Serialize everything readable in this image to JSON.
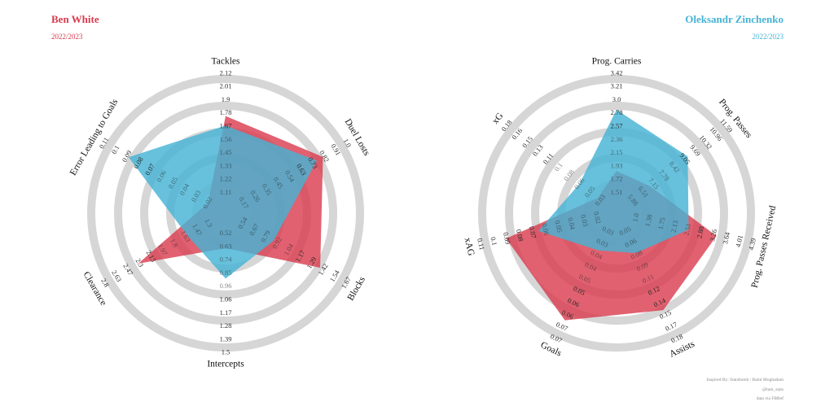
{
  "players": [
    {
      "name": "Ben White",
      "season": "2022/2023",
      "color": "#d93a4c"
    },
    {
      "name": "Oleksandr Zinchenko",
      "season": "2022/2023",
      "color": "#45b3d4"
    }
  ],
  "credits": [
    "Inspired By: Statsbomb / Rami Moghadam",
    "@tam_stats",
    "data via FBRef"
  ],
  "chart_data": [
    {
      "type": "radar",
      "axes": [
        {
          "label": "Tackles",
          "ticks": [
            "1.11",
            "1.22",
            "1.33",
            "1.45",
            "1.56",
            "1.67",
            "1.78",
            "1.9",
            "2.01",
            "2.12"
          ],
          "range": [
            1.11,
            2.12
          ]
        },
        {
          "label": "Duel Losts",
          "ticks": [
            "0.17",
            "0.26",
            "0.35",
            "0.45",
            "0.54",
            "0.63",
            "0.73",
            "0.82",
            "0.91",
            "1.0"
          ],
          "range": [
            0.17,
            1.0
          ]
        },
        {
          "label": "Blocks",
          "ticks": [
            "0.54",
            "0.67",
            "0.79",
            "0.92",
            "1.04",
            "1.17",
            "1.29",
            "1.42",
            "1.54",
            "1.67"
          ],
          "range": [
            0.54,
            1.67
          ]
        },
        {
          "label": "Intercepts",
          "ticks": [
            "0.52",
            "0.63",
            "0.74",
            "0.85",
            "0.96",
            "1.06",
            "1.17",
            "1.28",
            "1.39",
            "1.5"
          ],
          "range": [
            0.52,
            1.5
          ]
        },
        {
          "label": "Clearance",
          "ticks": [
            "1.3",
            "1.47",
            "1.63",
            "1.8",
            "1.97",
            "2.13",
            "2.3",
            "2.47",
            "2.63",
            "2.8"
          ],
          "range": [
            1.3,
            2.8
          ]
        },
        {
          "label": "Error Leading to Goals",
          "ticks": [
            "0.02",
            "0.03",
            "0.04",
            "0.05",
            "0.06",
            "0.07",
            "0.08",
            "0.09",
            "0.1",
            "0.11"
          ],
          "range": [
            0.02,
            0.11
          ]
        }
      ],
      "series": [
        {
          "name": "Ben White",
          "values": [
            1.76,
            0.81,
            1.38,
            0.64,
            2.31,
            0.02
          ]
        },
        {
          "name": "Oleksandr Zinchenko",
          "values": [
            1.68,
            0.76,
            0.87,
            0.89,
            1.6,
            0.089
          ]
        }
      ]
    },
    {
      "type": "radar",
      "axes": [
        {
          "label": "Prog. Carries",
          "ticks": [
            "1.51",
            "1.72",
            "1.93",
            "2.15",
            "2.36",
            "2.57",
            "2.78",
            "3.0",
            "3.21",
            "3.42"
          ],
          "range": [
            1.51,
            3.42
          ]
        },
        {
          "label": "Prog. Passes",
          "ticks": [
            "5.88",
            "6.51",
            "7.15",
            "7.78",
            "8.42",
            "9.05",
            "9.69",
            "10.32",
            "10.96",
            "11.59"
          ],
          "range": [
            5.88,
            11.59
          ]
        },
        {
          "label": "Prog. Passes Received",
          "ticks": [
            "1.0",
            "1.38",
            "1.75",
            "2.13",
            "2.51",
            "2.88",
            "3.26",
            "3.64",
            "4.01",
            "4.39"
          ],
          "range": [
            1.0,
            4.39
          ]
        },
        {
          "label": "Assists",
          "ticks": [
            "0.05",
            "0.06",
            "0.08",
            "0.09",
            "0.11",
            "0.12",
            "0.14",
            "0.15",
            "0.17",
            "0.18"
          ],
          "range": [
            0.05,
            0.18
          ]
        },
        {
          "label": "Goals",
          "ticks": [
            "0.03",
            "0.03",
            "0.04",
            "0.04",
            "0.05",
            "0.05",
            "0.06",
            "0.06",
            "0.07",
            "0.07"
          ],
          "range": [
            0.03,
            0.07
          ]
        },
        {
          "label": "xAG",
          "ticks": [
            "0.02",
            "0.03",
            "0.04",
            "0.05",
            "0.06",
            "0.07",
            "0.08",
            "0.09",
            "0.1",
            "0.11"
          ],
          "range": [
            0.02,
            0.11
          ]
        },
        {
          "label": "xG",
          "ticks": [
            "0.03",
            "0.05",
            "0.06",
            "0.08",
            "0.1",
            "0.11",
            "0.13",
            "0.15",
            "0.16",
            "0.18"
          ],
          "range": [
            0.03,
            0.18
          ]
        }
      ],
      "series": [
        {
          "name": "Ben White",
          "values": [
            1.86,
            6.97,
            3.33,
            0.145,
            0.063,
            0.09,
            0.035
          ]
        },
        {
          "name": "Oleksandr Zinchenko",
          "values": [
            2.84,
            9.26,
            2.52,
            0.076,
            0.037,
            0.065,
            0.064
          ]
        }
      ]
    }
  ]
}
